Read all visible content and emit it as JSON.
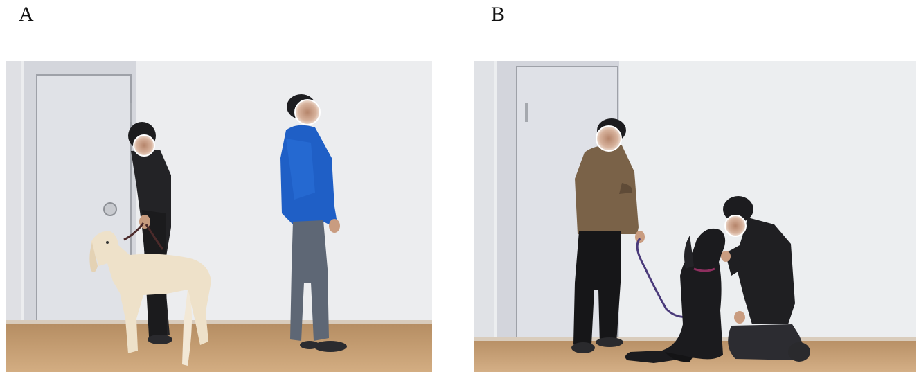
{
  "panels": [
    {
      "label": "A"
    },
    {
      "label": "B"
    }
  ],
  "colors": {
    "wall": "#ebebed",
    "floor": "#c29a6e",
    "door": "#dcdde2",
    "face_blur": "#c39a80",
    "blue_jacket": "#1f5fc4",
    "brown_jacket": "#7a6248",
    "white_dog": "#eee0c8",
    "black_dog": "#1a1a1d"
  }
}
